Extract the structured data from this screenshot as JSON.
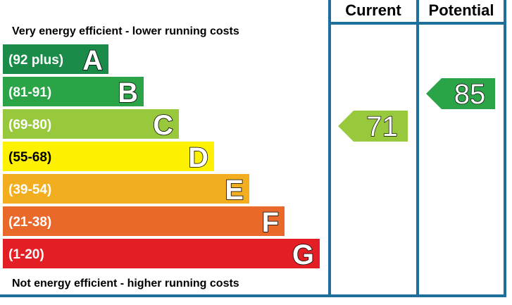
{
  "chart_data": {
    "type": "bar",
    "top_caption": "Very energy efficient - lower running costs",
    "bottom_caption": "Not energy efficient - higher running costs",
    "columns": {
      "current": "Current",
      "potential": "Potential"
    },
    "bands": [
      {
        "letter": "A",
        "range": "(92 plus)",
        "min": 92,
        "max": 100,
        "color": "#1a8b49"
      },
      {
        "letter": "B",
        "range": "(81-91)",
        "min": 81,
        "max": 91,
        "color": "#2ba347"
      },
      {
        "letter": "C",
        "range": "(69-80)",
        "min": 69,
        "max": 80,
        "color": "#98c93c"
      },
      {
        "letter": "D",
        "range": "(55-68)",
        "min": 55,
        "max": 68,
        "color": "#fef200"
      },
      {
        "letter": "E",
        "range": "(39-54)",
        "min": 39,
        "max": 54,
        "color": "#f2ae1e"
      },
      {
        "letter": "F",
        "range": "(21-38)",
        "min": 21,
        "max": 38,
        "color": "#e8692a"
      },
      {
        "letter": "G",
        "range": "(1-20)",
        "min": 1,
        "max": 20,
        "color": "#e31e25"
      }
    ],
    "current": {
      "value": 71,
      "band": "C",
      "color": "#98c93c"
    },
    "potential": {
      "value": 85,
      "band": "B",
      "color": "#2ba347"
    }
  },
  "colors": {
    "frame": "#1d6f9c"
  }
}
